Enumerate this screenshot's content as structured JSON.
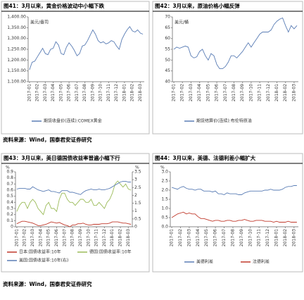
{
  "sources": [
    "资料来源：Wind，国泰君安证券研究",
    "资料来源：Wind，国泰君安证券研究"
  ],
  "chart_data": [
    {
      "type": "line",
      "title": "图41：3月以来，黄金价格波动中小幅下跌",
      "unit": "美元/盎司",
      "categories": [
        "2017-01",
        null,
        null,
        "2017-02",
        null,
        null,
        "2017-03",
        null,
        null,
        "2017-04",
        null,
        null,
        "2017-05",
        null,
        null,
        "2017-06",
        null,
        null,
        "2017-07",
        null,
        null,
        "2017-08",
        null,
        null,
        "2017-09",
        null,
        null,
        "2017-10",
        null,
        null,
        "2017-11",
        null,
        null,
        "2017-12",
        null,
        null,
        "2018-01",
        null,
        null,
        "2018-02",
        null,
        null,
        "2018-03",
        null
      ],
      "ylim": [
        1100,
        1400
      ],
      "yticks": [
        {
          "value": 1100,
          "label": "1,100.00"
        },
        {
          "value": 1150,
          "label": "1,150.00"
        },
        {
          "value": 1200,
          "label": "1,200.00"
        },
        {
          "value": 1250,
          "label": "1,250.00"
        },
        {
          "value": 1300,
          "label": "1,300.00"
        },
        {
          "value": 1350,
          "label": "1,350.00"
        },
        {
          "value": 1400,
          "label": "1,400.00"
        }
      ],
      "series": [
        {
          "name": "期货收盘价(连续):COMEX黄金",
          "color": "#5a7db5",
          "values": [
            1155,
            1190,
            1195,
            1215,
            1235,
            1255,
            1230,
            1225,
            1250,
            1255,
            1285,
            1270,
            1230,
            1225,
            1260,
            1280,
            1265,
            1245,
            1220,
            1230,
            1265,
            1270,
            1290,
            1315,
            1340,
            1320,
            1290,
            1280,
            1285,
            1275,
            1280,
            1290,
            1285,
            1265,
            1250,
            1295,
            1320,
            1340,
            1355,
            1335,
            1330,
            1340,
            1325,
            1320
          ]
        }
      ]
    },
    {
      "type": "line",
      "title": "图42：3月以来，原油价格小幅反弹",
      "unit": "美元/桶",
      "categories": [
        "2017-01",
        null,
        null,
        "2017-02",
        null,
        null,
        "2017-03",
        null,
        null,
        "2017-04",
        null,
        null,
        "2017-05",
        null,
        null,
        "2017-06",
        null,
        null,
        "2017-07",
        null,
        null,
        "2017-08",
        null,
        null,
        "2017-09",
        null,
        null,
        "2017-10",
        null,
        null,
        "2017-11",
        null,
        null,
        "2017-12",
        null,
        null,
        "2018-01",
        null,
        null,
        "2018-02",
        null,
        null,
        "2018-03",
        null
      ],
      "ylim": [
        40,
        70
      ],
      "yticks": [
        40,
        45,
        50,
        55,
        60,
        65,
        70
      ],
      "series": [
        {
          "name": "期货结算价(连续):布伦特原油",
          "color": "#5a7db5",
          "values": [
            55,
            56,
            55.5,
            56,
            56.5,
            56,
            52,
            51,
            51.5,
            54,
            55,
            52,
            50,
            53,
            52,
            48,
            46,
            46,
            47,
            49,
            52,
            52,
            51,
            52.5,
            54,
            56,
            58,
            56,
            58,
            60,
            62,
            63,
            63,
            63,
            64,
            66.5,
            68,
            69,
            69.5,
            66,
            63,
            66,
            64.5,
            66
          ]
        }
      ]
    },
    {
      "type": "line",
      "title": "图43：3月以来，美日德国债收益率普遍小幅下行",
      "unit": "%",
      "y2unit": "%",
      "categories": [
        "2017-01",
        null,
        null,
        "2017-02",
        null,
        null,
        "2017-03",
        null,
        null,
        "2017-04",
        null,
        null,
        "2017-05",
        null,
        null,
        "2017-06",
        null,
        null,
        "2017-07",
        null,
        null,
        "2017-08",
        null,
        null,
        "2017-09",
        null,
        null,
        "2017-10",
        null,
        null,
        "2017-11",
        null,
        null,
        "2017-12",
        null,
        null,
        "2018-01",
        null,
        null,
        "2018-02",
        null,
        null,
        "2018-03",
        null
      ],
      "ylim": [
        0,
        0.9
      ],
      "yticks": [
        0,
        0.1,
        0.2,
        0.3,
        0.4,
        0.5,
        0.6,
        0.7,
        0.8,
        0.9
      ],
      "y2lim": [
        0,
        3.5
      ],
      "y2ticks": [
        0,
        0.5,
        1,
        1.5,
        2,
        2.5,
        3,
        3.5
      ],
      "series": [
        {
          "name": "日本:国债收益率:10年",
          "color": "#c0392b",
          "values": [
            0.05,
            0.07,
            0.09,
            0.09,
            0.08,
            0.07,
            0.06,
            0.04,
            0.02,
            0.02,
            0.03,
            0.04,
            0.06,
            0.08,
            0.07,
            0.06,
            0.07,
            0.05,
            0.03,
            0.02,
            0.0,
            0.03,
            0.03,
            0.05,
            0.05,
            0.06,
            0.04,
            0.03,
            0.03,
            0.04,
            0.04,
            0.04,
            0.05,
            0.05,
            0.05,
            0.06,
            0.08,
            0.08,
            0.08,
            0.07,
            0.06,
            0.06,
            0.05,
            0.04
          ]
        },
        {
          "name": "德国:国债收益率:10年",
          "color": "#9bbb59",
          "values": [
            0.25,
            0.35,
            0.4,
            0.4,
            0.3,
            0.4,
            0.45,
            0.4,
            0.3,
            0.25,
            0.2,
            0.35,
            0.4,
            0.3,
            0.3,
            0.25,
            0.45,
            0.55,
            0.55,
            0.45,
            0.4,
            0.4,
            0.35,
            0.4,
            0.45,
            0.45,
            0.4,
            0.4,
            0.45,
            0.35,
            0.35,
            0.4,
            0.35,
            0.3,
            0.4,
            0.45,
            0.55,
            0.7,
            0.75,
            0.7,
            0.65,
            0.7,
            0.62,
            0.6
          ]
        },
        {
          "name": "美国:国债收益率:10年(右)",
          "color": "#5a7db5",
          "axis": "y2",
          "values": [
            2.4,
            2.45,
            2.45,
            2.45,
            2.4,
            2.4,
            2.55,
            2.45,
            2.35,
            2.3,
            2.25,
            2.3,
            2.35,
            2.25,
            2.25,
            2.2,
            2.15,
            2.3,
            2.3,
            2.3,
            2.2,
            2.2,
            2.15,
            2.1,
            2.05,
            2.2,
            2.3,
            2.35,
            2.4,
            2.35,
            2.35,
            2.4,
            2.35,
            2.35,
            2.4,
            2.45,
            2.55,
            2.65,
            2.75,
            2.85,
            2.9,
            2.9,
            2.85,
            2.85
          ]
        }
      ]
    },
    {
      "type": "line",
      "title": "图44：3月以来，美德、法德利差小幅扩大",
      "unit": "%",
      "categories": [
        "2017-01",
        null,
        null,
        "2017-02",
        null,
        null,
        "2017-03",
        null,
        null,
        "2017-04",
        null,
        null,
        "2017-05",
        null,
        null,
        "2017-06",
        null,
        null,
        "2017-07",
        null,
        null,
        "2017-08",
        null,
        null,
        "2017-09",
        null,
        null,
        "2017-10",
        null,
        null,
        "2017-11",
        null,
        null,
        "2017-12",
        null,
        null,
        "2018-01",
        null,
        null,
        "2018-02",
        null,
        null,
        "2018-03",
        null
      ],
      "ylim": [
        0,
        3
      ],
      "yticks": [
        {
          "value": 0,
          "label": "0.0"
        },
        0.5,
        {
          "value": 1,
          "label": "1.0"
        },
        1.5,
        {
          "value": 2,
          "label": "2.0"
        },
        2.5,
        {
          "value": 3,
          "label": "3.0"
        }
      ],
      "series": [
        {
          "name": "美德利差",
          "color": "#5a7db5",
          "values": [
            2.15,
            2.1,
            2.05,
            2.15,
            2.2,
            2.1,
            2.05,
            2.05,
            2.0,
            2.05,
            2.05,
            1.95,
            1.95,
            1.95,
            1.9,
            1.95,
            1.8,
            1.8,
            1.75,
            1.85,
            1.8,
            1.8,
            1.8,
            1.75,
            1.75,
            1.85,
            1.9,
            1.95,
            1.95,
            1.95,
            1.95,
            1.95,
            2.0,
            2.0,
            2.05,
            2.0,
            2.0,
            2.0,
            2.05,
            2.15,
            2.2,
            2.2,
            2.25,
            2.25
          ]
        },
        {
          "name": "法德利差",
          "color": "#c0392b",
          "values": [
            0.5,
            0.6,
            0.7,
            0.75,
            0.8,
            0.7,
            0.75,
            0.7,
            0.7,
            0.55,
            0.45,
            0.45,
            0.4,
            0.35,
            0.3,
            0.35,
            0.35,
            0.3,
            0.3,
            0.35,
            0.35,
            0.3,
            0.3,
            0.35,
            0.35,
            0.4,
            0.35,
            0.3,
            0.3,
            0.35,
            0.35,
            0.35,
            0.3,
            0.3,
            0.3,
            0.25,
            0.3,
            0.25,
            0.25,
            0.25,
            0.3,
            0.25,
            0.25,
            0.25
          ]
        }
      ]
    }
  ]
}
